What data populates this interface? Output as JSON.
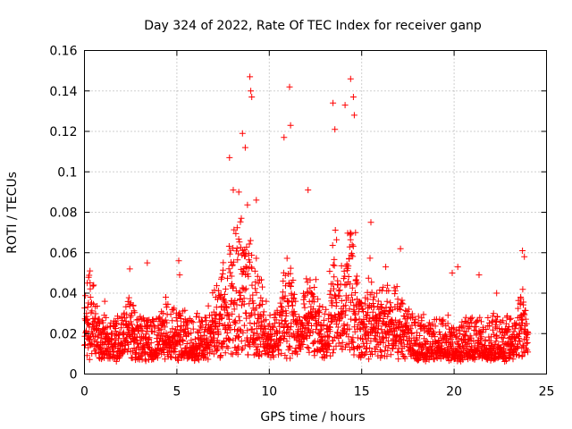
{
  "chart_data": {
    "type": "scatter",
    "title": "Day 324 of 2022, Rate Of TEC Index for receiver ganp",
    "xlabel": "GPS time / hours",
    "ylabel": "ROTI / TECUs",
    "xlim": [
      0,
      25
    ],
    "ylim": [
      0,
      0.16
    ],
    "x_ticks": [
      0,
      5,
      10,
      15,
      20,
      25
    ],
    "x_tick_labels": [
      "0",
      "5",
      "10",
      "15",
      "20",
      "25"
    ],
    "y_ticks": [
      0,
      0.02,
      0.04,
      0.06,
      0.08,
      0.1,
      0.12,
      0.14,
      0.16
    ],
    "y_tick_labels": [
      "0",
      "0.02",
      "0.04",
      "0.06",
      "0.08",
      "0.1",
      "0.12",
      "0.14",
      "0.16"
    ],
    "grid": true,
    "marker": "+",
    "color": "#ff0000",
    "series": [
      {
        "name": "ROTI",
        "x_range_hours": [
          0,
          24
        ],
        "baseline_roti": 0.012,
        "baseline_spread": 0.02,
        "peaks": [
          {
            "x": 0.3,
            "y": 0.051
          },
          {
            "x": 0.15,
            "y": 0.045
          },
          {
            "x": 1.1,
            "y": 0.036
          },
          {
            "x": 2.45,
            "y": 0.052
          },
          {
            "x": 3.4,
            "y": 0.055
          },
          {
            "x": 4.4,
            "y": 0.038
          },
          {
            "x": 5.1,
            "y": 0.056
          },
          {
            "x": 5.15,
            "y": 0.049
          },
          {
            "x": 6.1,
            "y": 0.03
          },
          {
            "x": 7.4,
            "y": 0.047
          },
          {
            "x": 7.85,
            "y": 0.107
          },
          {
            "x": 8.05,
            "y": 0.091
          },
          {
            "x": 8.35,
            "y": 0.09
          },
          {
            "x": 8.55,
            "y": 0.119
          },
          {
            "x": 8.7,
            "y": 0.112
          },
          {
            "x": 8.95,
            "y": 0.147
          },
          {
            "x": 9.0,
            "y": 0.14
          },
          {
            "x": 9.05,
            "y": 0.137
          },
          {
            "x": 9.3,
            "y": 0.086
          },
          {
            "x": 10.8,
            "y": 0.117
          },
          {
            "x": 11.1,
            "y": 0.142
          },
          {
            "x": 11.15,
            "y": 0.123
          },
          {
            "x": 12.1,
            "y": 0.091
          },
          {
            "x": 13.45,
            "y": 0.134
          },
          {
            "x": 13.55,
            "y": 0.121
          },
          {
            "x": 14.1,
            "y": 0.133
          },
          {
            "x": 14.4,
            "y": 0.146
          },
          {
            "x": 14.55,
            "y": 0.137
          },
          {
            "x": 14.6,
            "y": 0.128
          },
          {
            "x": 15.5,
            "y": 0.075
          },
          {
            "x": 16.3,
            "y": 0.053
          },
          {
            "x": 17.1,
            "y": 0.062
          },
          {
            "x": 19.9,
            "y": 0.05
          },
          {
            "x": 20.2,
            "y": 0.053
          },
          {
            "x": 21.35,
            "y": 0.049
          },
          {
            "x": 22.3,
            "y": 0.04
          },
          {
            "x": 23.7,
            "y": 0.061
          },
          {
            "x": 23.8,
            "y": 0.058
          }
        ],
        "bursts": [
          {
            "x": 0.3,
            "w": 0.4,
            "amp": 0.025
          },
          {
            "x": 2.4,
            "w": 0.3,
            "amp": 0.015
          },
          {
            "x": 4.4,
            "w": 0.4,
            "amp": 0.012
          },
          {
            "x": 5.1,
            "w": 0.3,
            "amp": 0.01
          },
          {
            "x": 7.3,
            "w": 0.5,
            "amp": 0.018
          },
          {
            "x": 8.6,
            "w": 1.0,
            "amp": 0.06
          },
          {
            "x": 11.0,
            "w": 0.4,
            "amp": 0.05
          },
          {
            "x": 12.2,
            "w": 0.5,
            "amp": 0.03
          },
          {
            "x": 13.5,
            "w": 0.3,
            "amp": 0.045
          },
          {
            "x": 14.4,
            "w": 0.5,
            "amp": 0.06
          },
          {
            "x": 15.5,
            "w": 0.4,
            "amp": 0.03
          },
          {
            "x": 16.3,
            "w": 0.4,
            "amp": 0.02
          },
          {
            "x": 17.1,
            "w": 0.5,
            "amp": 0.02
          },
          {
            "x": 23.7,
            "w": 0.3,
            "amp": 0.025
          }
        ]
      }
    ]
  }
}
